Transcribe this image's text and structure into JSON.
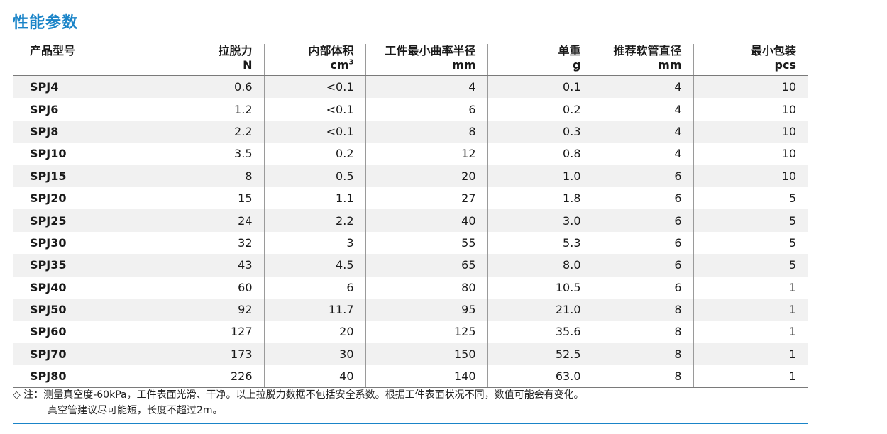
{
  "title": "性能参数",
  "table": {
    "headers": [
      {
        "label": "产品型号",
        "unit": ""
      },
      {
        "label": "拉脱力",
        "unit": "N"
      },
      {
        "label": "内部体积",
        "unit": "cm",
        "unit_sup": "3"
      },
      {
        "label": "工件最小曲率半径",
        "unit": "mm"
      },
      {
        "label": "单重",
        "unit": "g"
      },
      {
        "label": "推荐软管直径",
        "unit": "mm"
      },
      {
        "label": "最小包装",
        "unit": "pcs"
      }
    ],
    "rows": [
      [
        "SPJ4",
        "0.6",
        "<0.1",
        "4",
        "0.1",
        "4",
        "10"
      ],
      [
        "SPJ6",
        "1.2",
        "<0.1",
        "6",
        "0.2",
        "4",
        "10"
      ],
      [
        "SPJ8",
        "2.2",
        "<0.1",
        "8",
        "0.3",
        "4",
        "10"
      ],
      [
        "SPJ10",
        "3.5",
        "0.2",
        "12",
        "0.8",
        "4",
        "10"
      ],
      [
        "SPJ15",
        "8",
        "0.5",
        "20",
        "1.0",
        "6",
        "10"
      ],
      [
        "SPJ20",
        "15",
        "1.1",
        "27",
        "1.8",
        "6",
        "5"
      ],
      [
        "SPJ25",
        "24",
        "2.2",
        "40",
        "3.0",
        "6",
        "5"
      ],
      [
        "SPJ30",
        "32",
        "3",
        "55",
        "5.3",
        "6",
        "5"
      ],
      [
        "SPJ35",
        "43",
        "4.5",
        "65",
        "8.0",
        "6",
        "5"
      ],
      [
        "SPJ40",
        "60",
        "6",
        "80",
        "10.5",
        "6",
        "1"
      ],
      [
        "SPJ50",
        "92",
        "11.7",
        "95",
        "21.0",
        "8",
        "1"
      ],
      [
        "SPJ60",
        "127",
        "20",
        "125",
        "35.6",
        "8",
        "1"
      ],
      [
        "SPJ70",
        "173",
        "30",
        "150",
        "52.5",
        "8",
        "1"
      ],
      [
        "SPJ80",
        "226",
        "40",
        "140",
        "63.0",
        "8",
        "1"
      ]
    ]
  },
  "note": {
    "line1": "◇ 注：测量真空度-60kPa，工件表面光滑、干净。以上拉脱力数据不包括安全系数。根据工件表面状况不同，数值可能会有变化。",
    "line2": "真空管建议尽可能短，长度不超过2m。"
  },
  "colors": {
    "accent": "#1a84c8",
    "stripe": "#f1f1f1"
  }
}
